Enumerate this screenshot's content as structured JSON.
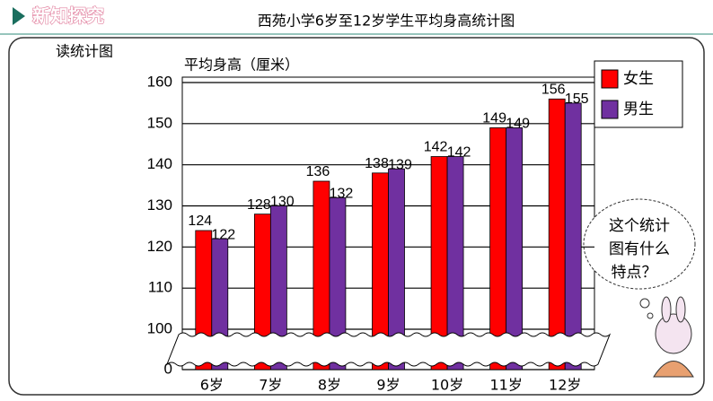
{
  "header": {
    "title": "新知探究",
    "subtitle": "读统计图"
  },
  "bubble": {
    "lines": [
      "这个统计",
      "图有什么",
      "特点？"
    ]
  },
  "chart_data": {
    "type": "bar",
    "title": "西苑小学6岁至12岁学生平均身高统计图",
    "ylabel": "平均身高（厘米）",
    "categories": [
      "6岁",
      "7岁",
      "8岁",
      "9岁",
      "10岁",
      "11岁",
      "12岁"
    ],
    "series": [
      {
        "name": "女生",
        "color": "#ff0000",
        "values": [
          124,
          128,
          136,
          138,
          142,
          149,
          156
        ]
      },
      {
        "name": "男生",
        "color": "#7030a0",
        "values": [
          122,
          130,
          132,
          139,
          142,
          149,
          155
        ]
      }
    ],
    "ylim": [
      0,
      160
    ],
    "axis_break": [
      0,
      100
    ],
    "yticks": [
      0,
      100,
      110,
      120,
      130,
      140,
      150,
      160
    ],
    "grid": true,
    "legend": "right"
  }
}
